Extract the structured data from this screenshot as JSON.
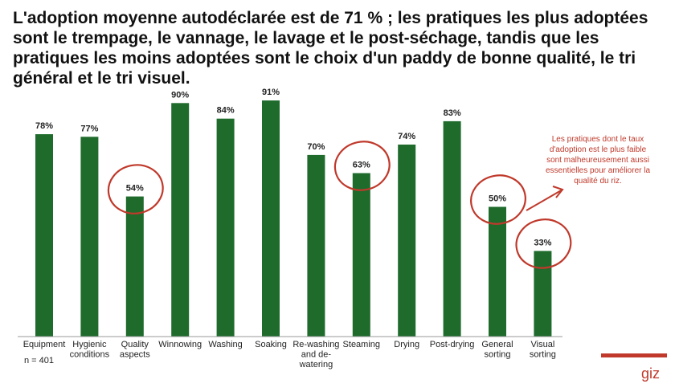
{
  "headline": "L'adoption moyenne autodéclarée est de 71 % ; les pratiques les plus adoptées sont le trempage, le vannage, le lavage et le post-séchage, tandis que les pratiques les moins adoptées sont le choix d'un paddy de bonne qualité, le tri général et le tri visuel.",
  "sample_note": "n = 401",
  "callout": "Les pratiques dont le taux d'adoption est le plus faible sont malheureusement aussi essentielles pour améliorer la qualité du riz.",
  "brand": "giz",
  "colors": {
    "bar": "#1e6b2c",
    "accent": "#c0392b"
  },
  "chart_data": {
    "type": "bar",
    "categories": [
      [
        "Equipment"
      ],
      [
        "Hygienic",
        "conditions"
      ],
      [
        "Quality",
        "aspects"
      ],
      [
        "Winnowing"
      ],
      [
        "Washing"
      ],
      [
        "Soaking"
      ],
      [
        "Re-washing",
        "and de-",
        "watering"
      ],
      [
        "Steaming"
      ],
      [
        "Drying"
      ],
      [
        "Post-drying"
      ],
      [
        "General",
        "sorting"
      ],
      [
        "Visual",
        "sorting"
      ]
    ],
    "values": [
      78,
      77,
      54,
      90,
      84,
      91,
      70,
      63,
      74,
      83,
      50,
      33
    ],
    "data_labels": [
      "78%",
      "77%",
      "54%",
      "90%",
      "84%",
      "91%",
      "70%",
      "63%",
      "74%",
      "83%",
      "50%",
      "33%"
    ],
    "highlighted": [
      2,
      7,
      10,
      11
    ],
    "ylim": [
      0,
      100
    ],
    "grid": false
  }
}
